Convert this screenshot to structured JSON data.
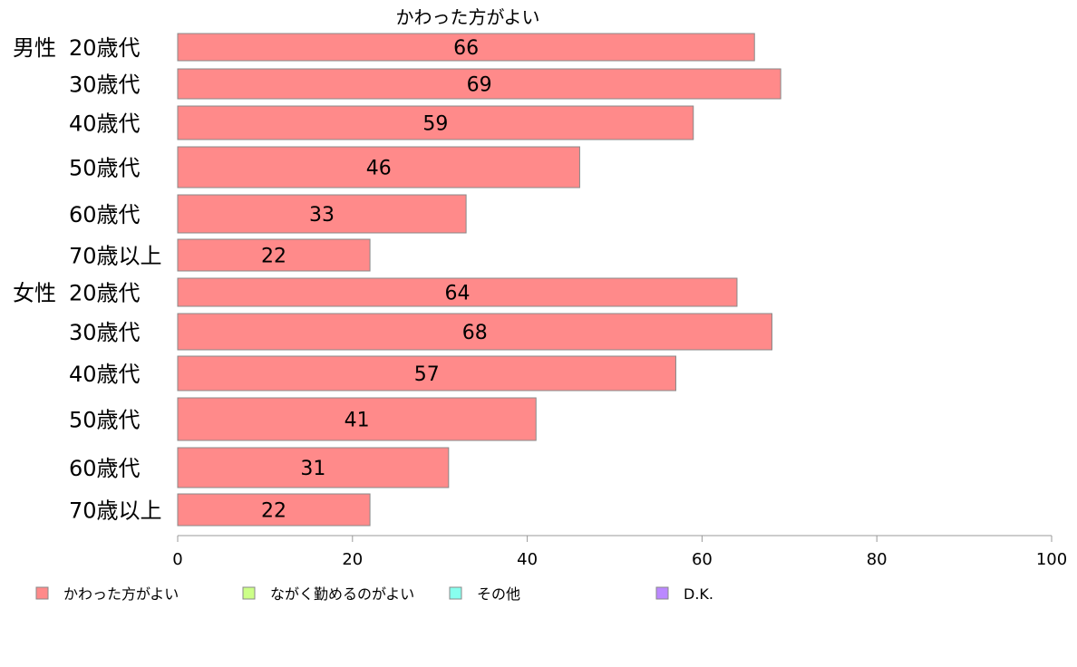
{
  "chart_data": {
    "type": "bar",
    "orientation": "horizontal",
    "title": "かわった方がよい",
    "groups": [
      {
        "label": "男性",
        "categories": [
          "20歳代",
          "30歳代",
          "40歳代",
          "50歳代",
          "60歳代",
          "70歳以上"
        ],
        "values": [
          66,
          69,
          59,
          46,
          33,
          22
        ]
      },
      {
        "label": "女性",
        "categories": [
          "20歳代",
          "30歳代",
          "40歳代",
          "50歳代",
          "60歳代",
          "70歳以上"
        ],
        "values": [
          64,
          68,
          57,
          41,
          31,
          22
        ]
      }
    ],
    "xlim": [
      0,
      100
    ],
    "xticks": [
      0,
      20,
      40,
      60,
      80,
      100
    ],
    "xlabel": "",
    "ylabel": "",
    "legend": {
      "placement": "bottom",
      "items": [
        {
          "label": "かわった方がよい",
          "color": "#ff8a8a"
        },
        {
          "label": "ながく勤めるのがよい",
          "color": "#ccff88"
        },
        {
          "label": "その他",
          "color": "#88ffee"
        },
        {
          "label": "D.K.",
          "color": "#bb88ff"
        }
      ]
    },
    "bar_color": "#ff8a8a",
    "bar_edge_color": "#888888",
    "axis_color": "#999999"
  }
}
